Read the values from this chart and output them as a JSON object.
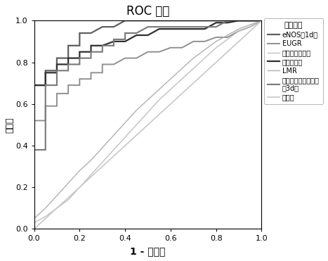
{
  "title": "ROC 曲线",
  "xlabel": "1 - 特异性",
  "ylabel": "敏感度",
  "legend_title": "曲线来源",
  "legend_entries": [
    "eNOS（1d）",
    "EUGR",
    "咋啊因治疗天数",
    "总吸氧天数",
    "LMR",
    "重度肺泡间质综合征（3d）",
    "参考线"
  ],
  "curves": {
    "eNOS_1d": {
      "fpr": [
        0.0,
        0.0,
        0.05,
        0.05,
        0.1,
        0.1,
        0.15,
        0.15,
        0.2,
        0.2,
        0.25,
        0.3,
        0.35,
        0.4,
        0.45,
        0.5,
        1.0
      ],
      "tpr": [
        0.0,
        0.69,
        0.69,
        0.76,
        0.76,
        0.82,
        0.82,
        0.88,
        0.88,
        0.94,
        0.94,
        0.97,
        0.97,
        1.0,
        1.0,
        1.0,
        1.0
      ],
      "color": "#606060",
      "lw": 1.6
    },
    "EUGR": {
      "fpr": [
        0.0,
        0.0,
        0.05,
        0.05,
        0.1,
        0.1,
        0.15,
        0.15,
        0.2,
        0.2,
        0.25,
        0.25,
        0.3,
        0.3,
        0.35,
        0.4,
        0.45,
        0.5,
        0.55,
        0.6,
        0.65,
        0.7,
        0.75,
        0.8,
        0.85,
        0.9,
        0.95,
        1.0
      ],
      "tpr": [
        0.0,
        0.52,
        0.52,
        0.59,
        0.59,
        0.65,
        0.65,
        0.69,
        0.69,
        0.72,
        0.72,
        0.75,
        0.75,
        0.79,
        0.79,
        0.82,
        0.82,
        0.85,
        0.85,
        0.87,
        0.87,
        0.9,
        0.9,
        0.92,
        0.92,
        0.95,
        0.97,
        1.0
      ],
      "color": "#909090",
      "lw": 1.4
    },
    "caffeine": {
      "fpr": [
        0.0,
        0.0,
        0.05,
        0.1,
        0.15,
        0.2,
        0.25,
        0.3,
        0.35,
        0.4,
        0.45,
        0.5,
        0.55,
        0.6,
        0.65,
        0.7,
        0.75,
        0.8,
        0.85,
        0.9,
        0.95,
        1.0
      ],
      "tpr": [
        0.0,
        0.03,
        0.06,
        0.1,
        0.14,
        0.2,
        0.26,
        0.32,
        0.38,
        0.44,
        0.5,
        0.56,
        0.62,
        0.67,
        0.72,
        0.77,
        0.82,
        0.87,
        0.91,
        0.95,
        0.97,
        1.0
      ],
      "color": "#c0c0c0",
      "lw": 1.0
    },
    "oxygen_days": {
      "fpr": [
        0.0,
        0.0,
        0.05,
        0.05,
        0.1,
        0.1,
        0.15,
        0.15,
        0.2,
        0.2,
        0.25,
        0.25,
        0.3,
        0.35,
        0.4,
        0.45,
        0.5,
        0.55,
        0.6,
        0.7,
        0.75,
        0.8,
        0.85,
        0.9,
        0.95,
        1.0
      ],
      "tpr": [
        0.0,
        0.69,
        0.69,
        0.75,
        0.75,
        0.79,
        0.79,
        0.82,
        0.82,
        0.85,
        0.85,
        0.88,
        0.88,
        0.9,
        0.9,
        0.93,
        0.93,
        0.96,
        0.96,
        0.96,
        0.96,
        0.99,
        0.99,
        1.0,
        1.0,
        1.0
      ],
      "color": "#303030",
      "lw": 1.6
    },
    "LMR": {
      "fpr": [
        0.0,
        0.0,
        0.05,
        0.1,
        0.15,
        0.2,
        0.25,
        0.3,
        0.35,
        0.4,
        0.45,
        0.5,
        0.55,
        0.6,
        0.65,
        0.7,
        0.75,
        0.8,
        0.85,
        0.9,
        0.95,
        1.0
      ],
      "tpr": [
        0.0,
        0.05,
        0.1,
        0.16,
        0.22,
        0.28,
        0.33,
        0.39,
        0.45,
        0.51,
        0.57,
        0.62,
        0.67,
        0.72,
        0.77,
        0.82,
        0.86,
        0.9,
        0.93,
        0.96,
        0.98,
        1.0
      ],
      "color": "#b0b0b0",
      "lw": 1.0
    },
    "severity_3d": {
      "fpr": [
        0.0,
        0.0,
        0.05,
        0.05,
        0.1,
        0.1,
        0.15,
        0.15,
        0.2,
        0.2,
        0.25,
        0.25,
        0.3,
        0.3,
        0.35,
        0.35,
        0.4,
        0.4,
        0.45,
        0.5,
        0.55,
        0.6,
        0.65,
        0.7,
        0.75,
        0.8,
        0.85,
        0.9,
        0.95,
        1.0
      ],
      "tpr": [
        0.0,
        0.38,
        0.38,
        0.69,
        0.69,
        0.76,
        0.76,
        0.79,
        0.79,
        0.82,
        0.82,
        0.85,
        0.85,
        0.88,
        0.88,
        0.91,
        0.91,
        0.94,
        0.94,
        0.97,
        0.97,
        0.97,
        0.97,
        0.97,
        0.97,
        0.97,
        1.0,
        1.0,
        1.0,
        1.0
      ],
      "color": "#787878",
      "lw": 1.5
    },
    "reference": {
      "fpr": [
        0.0,
        1.0
      ],
      "tpr": [
        0.0,
        1.0
      ],
      "color": "#c8c8c8",
      "lw": 1.2
    }
  },
  "xlim": [
    0.0,
    1.0
  ],
  "ylim": [
    0.0,
    1.0
  ],
  "xticks": [
    0.0,
    0.2,
    0.4,
    0.6,
    0.8,
    1.0
  ],
  "yticks": [
    0.0,
    0.2,
    0.4,
    0.6,
    0.8,
    1.0
  ],
  "background_color": "#ffffff"
}
